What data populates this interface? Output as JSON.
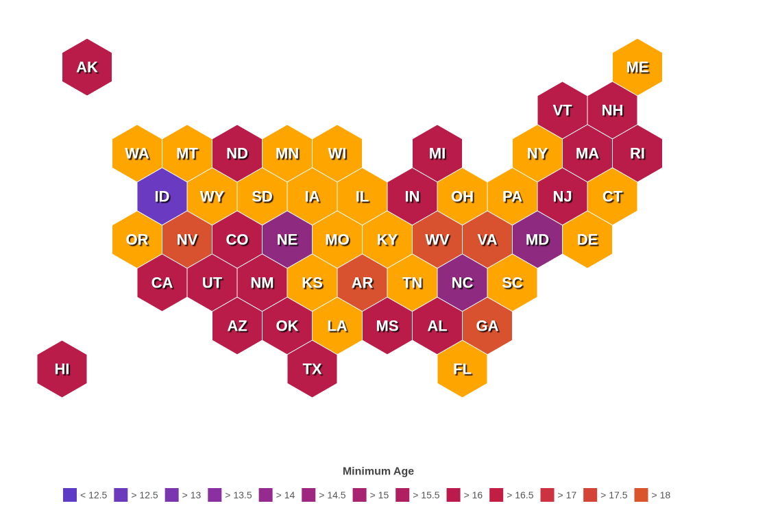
{
  "map": {
    "states": [
      {
        "label": "AK",
        "color": "#BA1C4A"
      },
      {
        "label": "ME",
        "color": "#FFA500"
      },
      {
        "label": "VT",
        "color": "#BA1C4A"
      },
      {
        "label": "NH",
        "color": "#BA1C4A"
      },
      {
        "label": "WA",
        "color": "#FFA500"
      },
      {
        "label": "MT",
        "color": "#FFA500"
      },
      {
        "label": "ND",
        "color": "#BA1C4A"
      },
      {
        "label": "MN",
        "color": "#FFA500"
      },
      {
        "label": "WI",
        "color": "#FFA500"
      },
      {
        "label": "MI",
        "color": "#BA1C4A"
      },
      {
        "label": "NY",
        "color": "#FFA500"
      },
      {
        "label": "MA",
        "color": "#BA1C4A"
      },
      {
        "label": "RI",
        "color": "#BA1C4A"
      },
      {
        "label": "ID",
        "color": "#6A3BC1"
      },
      {
        "label": "WY",
        "color": "#FFA500"
      },
      {
        "label": "SD",
        "color": "#FFA500"
      },
      {
        "label": "IA",
        "color": "#FFA500"
      },
      {
        "label": "IL",
        "color": "#FFA500"
      },
      {
        "label": "IN",
        "color": "#BA1C4A"
      },
      {
        "label": "OH",
        "color": "#FFA500"
      },
      {
        "label": "PA",
        "color": "#FFA500"
      },
      {
        "label": "NJ",
        "color": "#BA1C4A"
      },
      {
        "label": "CT",
        "color": "#FFA500"
      },
      {
        "label": "OR",
        "color": "#FFA500"
      },
      {
        "label": "NV",
        "color": "#D9522F"
      },
      {
        "label": "CO",
        "color": "#BA1C4A"
      },
      {
        "label": "NE",
        "color": "#8E2A80"
      },
      {
        "label": "MO",
        "color": "#FFA500"
      },
      {
        "label": "KY",
        "color": "#FFA500"
      },
      {
        "label": "WV",
        "color": "#D9522F"
      },
      {
        "label": "VA",
        "color": "#D9522F"
      },
      {
        "label": "MD",
        "color": "#8E2A80"
      },
      {
        "label": "DE",
        "color": "#FFA500"
      },
      {
        "label": "CA",
        "color": "#BA1C4A"
      },
      {
        "label": "UT",
        "color": "#BA1C4A"
      },
      {
        "label": "NM",
        "color": "#BA1C4A"
      },
      {
        "label": "KS",
        "color": "#FFA500"
      },
      {
        "label": "AR",
        "color": "#D9522F"
      },
      {
        "label": "TN",
        "color": "#FFA500"
      },
      {
        "label": "NC",
        "color": "#8E2A80"
      },
      {
        "label": "SC",
        "color": "#FFA500"
      },
      {
        "label": "AZ",
        "color": "#BA1C4A"
      },
      {
        "label": "OK",
        "color": "#BA1C4A"
      },
      {
        "label": "LA",
        "color": "#FFA500"
      },
      {
        "label": "MS",
        "color": "#BA1C4A"
      },
      {
        "label": "AL",
        "color": "#BA1C4A"
      },
      {
        "label": "GA",
        "color": "#D9522F"
      },
      {
        "label": "HI",
        "color": "#BA1C4A"
      },
      {
        "label": "TX",
        "color": "#BA1C4A"
      },
      {
        "label": "FL",
        "color": "#FFA500"
      }
    ],
    "legend": {
      "title": "Minimum Age",
      "items": [
        {
          "label": "< 12.5",
          "color": "#5E3BC4"
        },
        {
          "label": "> 12.5",
          "color": "#6B3BBB"
        },
        {
          "label": "> 13",
          "color": "#7A36AE"
        },
        {
          "label": "> 13.5",
          "color": "#8A30A0"
        },
        {
          "label": "> 14",
          "color": "#952B8F"
        },
        {
          "label": "> 14.5",
          "color": "#9E2880"
        },
        {
          "label": "> 15",
          "color": "#A82470"
        },
        {
          "label": "> 15.5",
          "color": "#B01F60"
        },
        {
          "label": "> 16",
          "color": "#BA1A4C"
        },
        {
          "label": "> 16.5",
          "color": "#C21E44"
        },
        {
          "label": "> 17",
          "color": "#CB3340"
        },
        {
          "label": "> 17.5",
          "color": "#D44436"
        },
        {
          "label": "> 18",
          "color": "#DA552C"
        }
      ]
    }
  }
}
